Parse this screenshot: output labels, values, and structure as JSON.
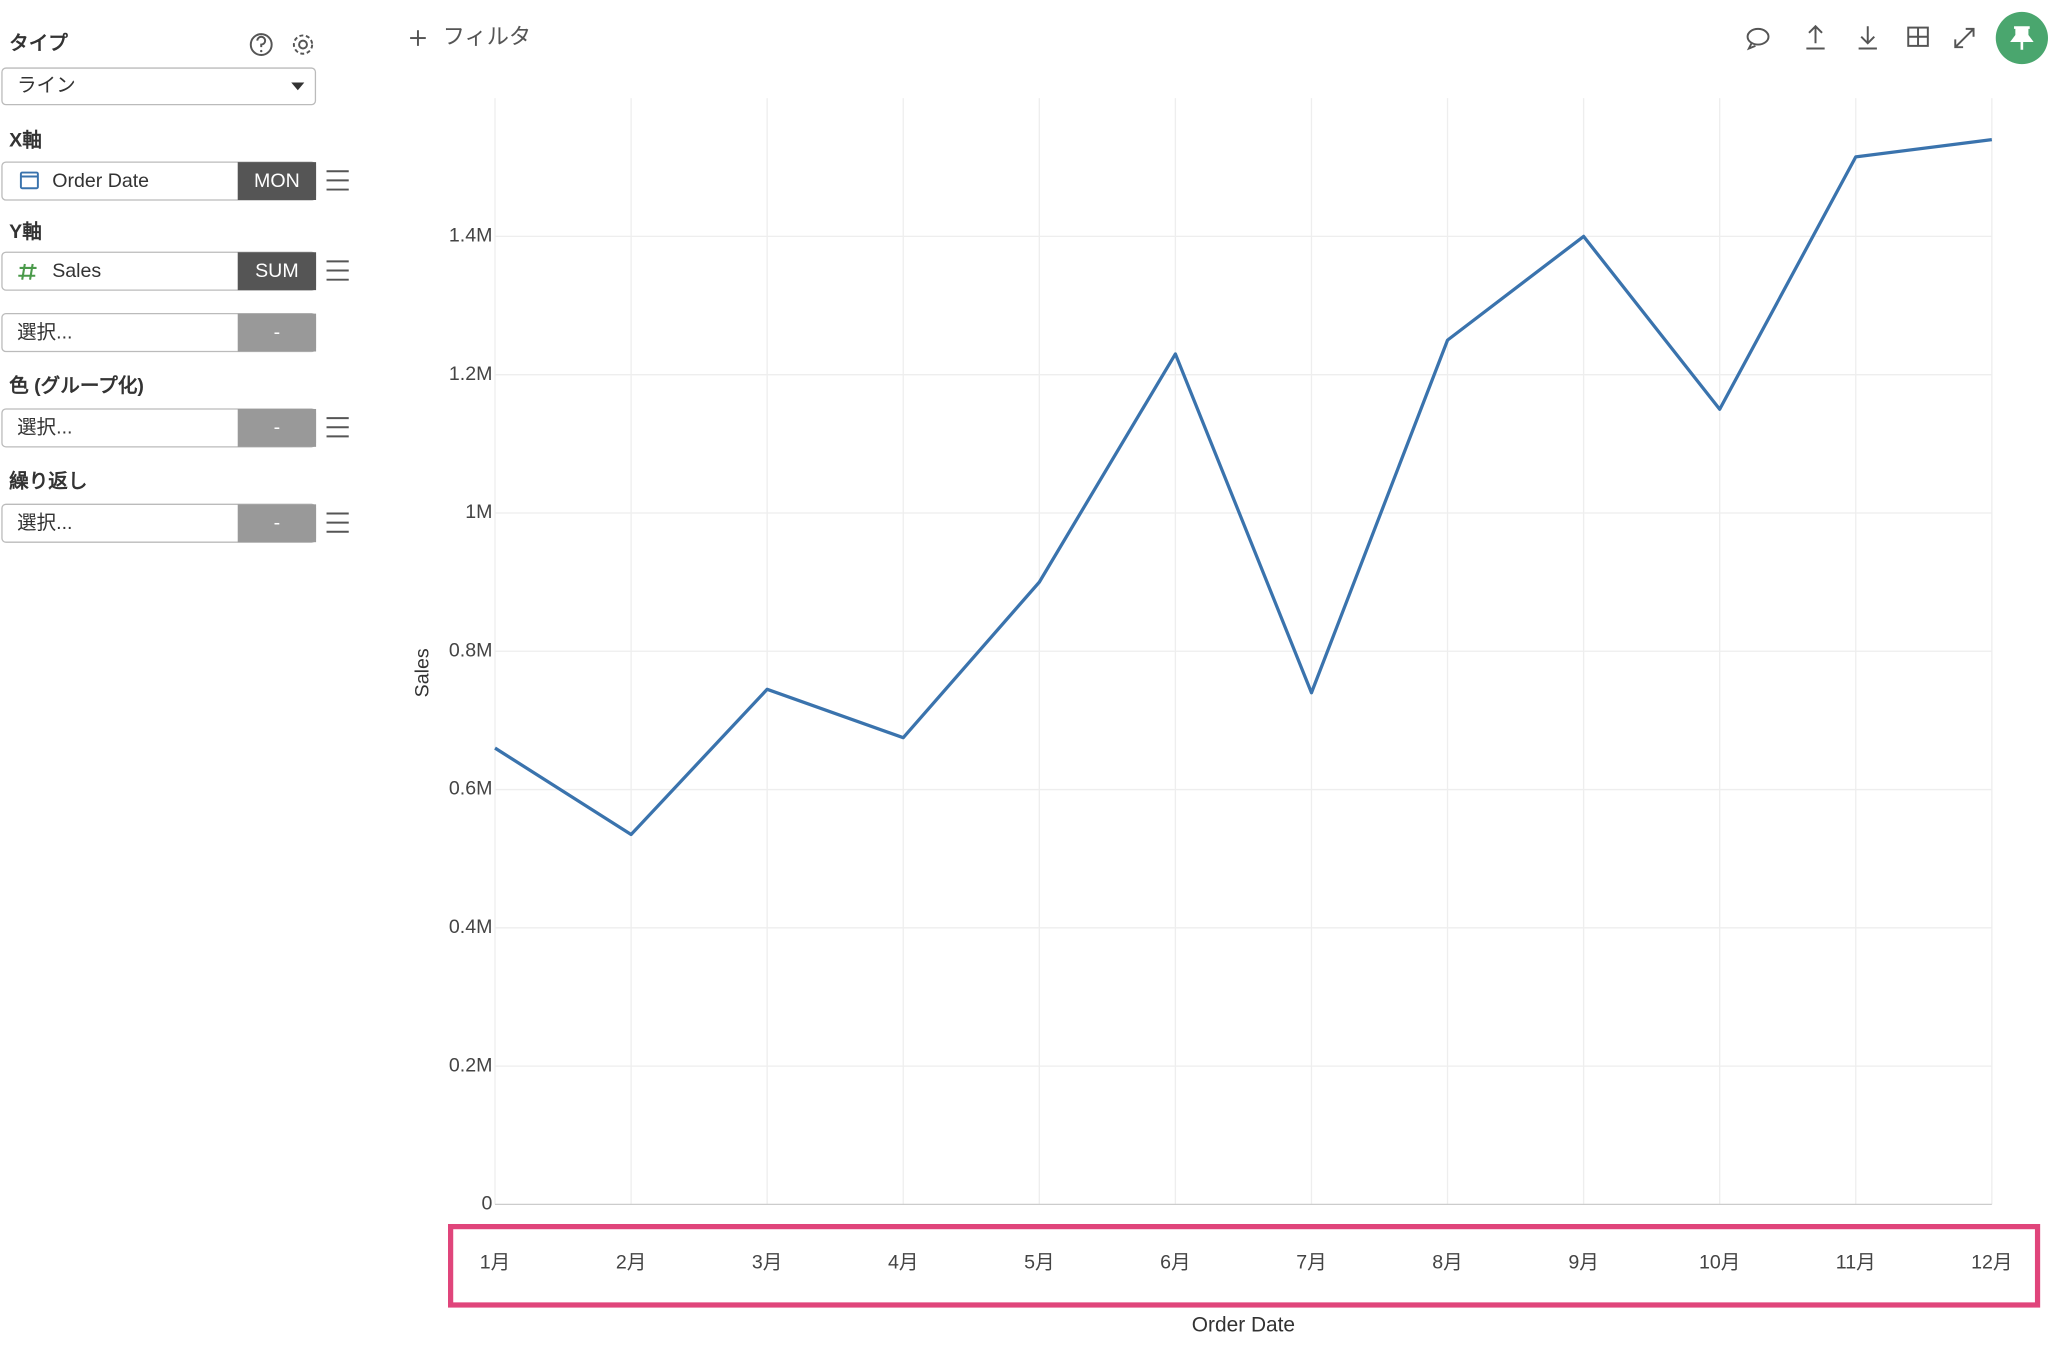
{
  "sidebar": {
    "type_label": "タイプ",
    "type_value": "ライン",
    "x_label": "X軸",
    "x_field": "Order Date",
    "x_agg": "MON",
    "y_label": "Y軸",
    "y_field": "Sales",
    "y_agg": "SUM",
    "y2_placeholder": "選択...",
    "y2_agg": "-",
    "color_label": "色 (グループ化)",
    "color_placeholder": "選択...",
    "color_agg": "-",
    "repeat_label": "繰り返し",
    "repeat_placeholder": "選択...",
    "repeat_agg": "-"
  },
  "toolbar": {
    "filter": "フィルタ"
  },
  "chart_data": {
    "type": "line",
    "x_label": "Order Date",
    "y_label": "Sales",
    "categories": [
      "1月",
      "2月",
      "3月",
      "4月",
      "5月",
      "6月",
      "7月",
      "8月",
      "9月",
      "10月",
      "11月",
      "12月"
    ],
    "values": [
      660000,
      535000,
      745000,
      675000,
      900000,
      1230000,
      740000,
      1250000,
      1400000,
      1150000,
      1515000,
      1540000
    ],
    "color": "#3a73ad",
    "ylim": [
      0,
      1600000
    ],
    "yticks": [
      0,
      {
        "value": 200000,
        "label": "0.2M"
      },
      {
        "value": 400000,
        "label": "0.4M"
      },
      {
        "value": 600000,
        "label": "0.6M"
      },
      {
        "value": 800000,
        "label": "0.8M"
      },
      {
        "value": 1000000,
        "label": "1M"
      },
      {
        "value": 1200000,
        "label": "1.2M"
      },
      {
        "value": 1400000,
        "label": "1.4M"
      }
    ],
    "grid": true
  }
}
